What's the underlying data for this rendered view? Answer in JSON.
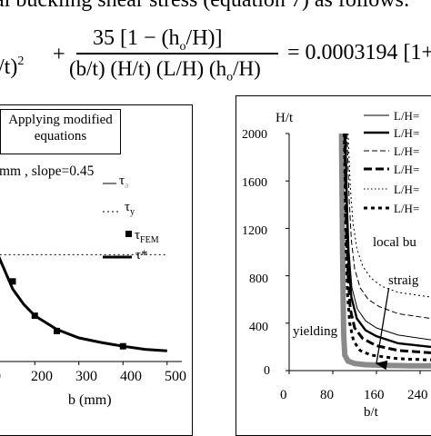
{
  "equation": {
    "line1": "al buckling shear stress (equation 7) as follows:",
    "left_term": "/t)",
    "left_sup": "2",
    "plus": "+",
    "numerator": "35  [1 − (h",
    "num_sub": "o",
    "num_tail": "/H)]",
    "denominator": "(b/t) (H/t) (L/H) (h",
    "den_sub": "o",
    "den_tail": "/H)",
    "rhs": "= 0.0003194  [1+"
  },
  "left_panel": {
    "callout": {
      "line1": "Applying modified",
      "line2": "equations"
    },
    "annotation": "mm , slope=0.45",
    "legend": [
      {
        "id": "tau-cr",
        "symbol": "τ",
        "subscript": "ə",
        "style": "thin-solid"
      },
      {
        "id": "tau-y",
        "symbol": "τ",
        "subscript": "y",
        "style": "dotted"
      },
      {
        "id": "tau-fem",
        "symbol": "τ",
        "subscript": "FEM",
        "style": "square-marker"
      },
      {
        "id": "tau-star",
        "symbol": "τ*",
        "subscript": "",
        "style": "thick-solid"
      }
    ],
    "colors": {
      "axis": "#000000",
      "curve": "#000000"
    }
  },
  "right_panel": {
    "text": {
      "ylabel": "H/t",
      "xlabel": "b/t",
      "region_local": "local bu",
      "region_straight": "straig",
      "region_yielding": "yielding"
    },
    "legend": [
      {
        "label": "L/H=",
        "style": "solid-thin"
      },
      {
        "label": "L/H=",
        "style": "solid-thick"
      },
      {
        "label": "L/H=",
        "style": "dash-thin"
      },
      {
        "label": "L/H=",
        "style": "dash-thick"
      },
      {
        "label": "L/H=",
        "style": "dotted"
      },
      {
        "label": "L/H=",
        "style": "dash-dot-thick"
      }
    ]
  },
  "chart_data": [
    {
      "type": "line",
      "xlabel": "b (mm)",
      "ylabel": "",
      "xlim": [
        100,
        500
      ],
      "x_ticks": [
        "200",
        "300",
        "400",
        "500"
      ],
      "x_tick_values": [
        200,
        300,
        400,
        500
      ],
      "x_edge_tick": "0",
      "series": [
        {
          "name": "τ*",
          "style": "thick-solid",
          "x": [
            100,
            120,
            150,
            175,
            200,
            250,
            300,
            350,
            400,
            450,
            500
          ],
          "y": [
            1.65,
            1.35,
            0.95,
            0.75,
            0.6,
            0.42,
            0.31,
            0.25,
            0.2,
            0.16,
            0.14
          ]
        },
        {
          "name": "τFEM",
          "style": "square-marker",
          "x": [
            150,
            200,
            250,
            400
          ],
          "y": [
            1.05,
            0.6,
            0.4,
            0.2
          ]
        },
        {
          "name": "τy",
          "style": "dotted",
          "x": [
            100,
            500
          ],
          "y": [
            1.4,
            1.4
          ]
        }
      ]
    },
    {
      "type": "line",
      "xlabel": "b/t",
      "ylabel": "H/t",
      "xlim": [
        0,
        260
      ],
      "ylim": [
        0,
        2000
      ],
      "y_ticks": [
        "0",
        "400",
        "800",
        "1200",
        "1600",
        "2000"
      ],
      "y_tick_values": [
        0,
        400,
        800,
        1200,
        1600,
        2000
      ],
      "x_ticks": [
        "0",
        "80",
        "160",
        "240"
      ],
      "x_tick_values": [
        0,
        80,
        160,
        240
      ],
      "series": [
        {
          "name": "L/H=",
          "style": "solid-thin",
          "x": [
            104,
            107,
            110,
            115,
            125,
            140,
            160,
            200,
            260
          ],
          "y": [
            2000,
            1400,
            1000,
            700,
            520,
            420,
            360,
            300,
            260
          ]
        },
        {
          "name": "L/H=",
          "style": "solid-thick",
          "x": [
            103,
            106,
            109,
            114,
            124,
            140,
            160,
            200,
            260
          ],
          "y": [
            2000,
            1300,
            900,
            620,
            440,
            340,
            290,
            230,
            200
          ]
        },
        {
          "name": "L/H=",
          "style": "dash-thin",
          "x": [
            106,
            110,
            114,
            120,
            130,
            145,
            165,
            200,
            260
          ],
          "y": [
            2000,
            1450,
            1100,
            860,
            700,
            600,
            540,
            480,
            440
          ]
        },
        {
          "name": "L/H=",
          "style": "dash-thick",
          "x": [
            102,
            105,
            108,
            112,
            120,
            135,
            160,
            200,
            260
          ],
          "y": [
            2000,
            1200,
            800,
            520,
            360,
            270,
            210,
            170,
            150
          ]
        },
        {
          "name": "L/H=",
          "style": "dotted",
          "x": [
            108,
            112,
            117,
            124,
            135,
            150,
            170,
            200,
            260
          ],
          "y": [
            2000,
            1550,
            1250,
            1030,
            880,
            780,
            710,
            660,
            620
          ]
        },
        {
          "name": "L/H=",
          "style": "dash-dot-thick",
          "x": [
            101,
            104,
            107,
            111,
            118,
            130,
            150,
            200,
            260
          ],
          "y": [
            2000,
            1100,
            650,
            400,
            250,
            170,
            130,
            100,
            90
          ]
        }
      ],
      "yielding_envelope": {
        "x": [
          96,
          97,
          98,
          99,
          100,
          102,
          108,
          120,
          140,
          170,
          220,
          260
        ],
        "y": [
          2000,
          1500,
          1000,
          600,
          300,
          130,
          80,
          60,
          50,
          45,
          40,
          40
        ]
      },
      "arrow": {
        "from": [
          185,
          760
        ],
        "to": [
          160,
          60
        ]
      }
    }
  ]
}
